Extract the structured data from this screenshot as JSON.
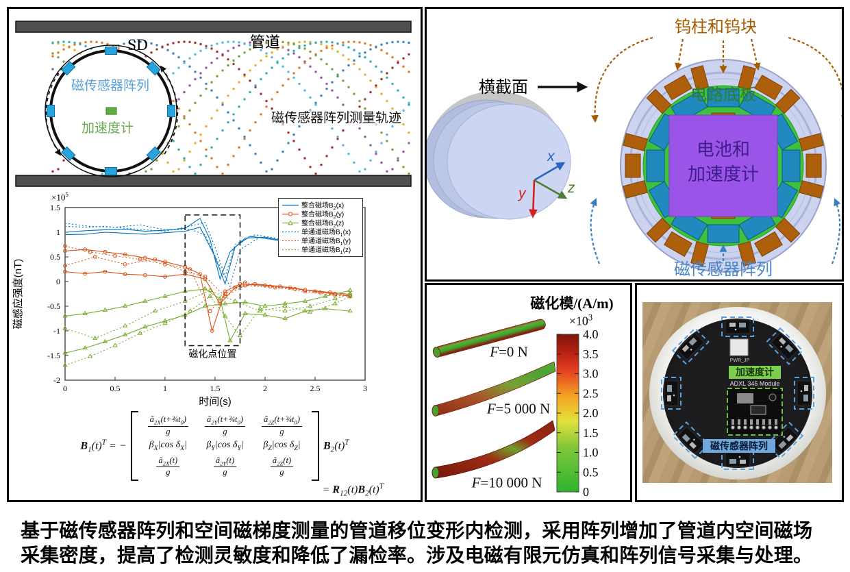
{
  "caption": {
    "line1": "基于磁传感器阵列和空间磁梯度测量的管道移位变形内检测，采用阵列增加了管道内空间磁场",
    "line2": "采集密度，提高了检测灵敏度和降低了漏检率。涉及电磁有限元仿真和阵列信号采集与处理。"
  },
  "pipe_panel": {
    "sd_label": "SD",
    "pipe_label": "管道",
    "array_label": "磁传感器阵列",
    "accel_label": "加速度计",
    "trajectory_label": "磁传感器阵列测量轨迹",
    "colors": {
      "wall": "#4f4f4f",
      "sensor": "#29a3dc",
      "accel": "#5fae3f",
      "array_label": "#58a0d6",
      "accel_label": "#6aa84f"
    },
    "trajectory_colors": [
      "#9a55a8",
      "#e8b12c",
      "#e07b28",
      "#3a85c4",
      "#a8322c",
      "#5ab7e0",
      "#74a63c",
      "#30b0b8"
    ]
  },
  "chart_data": {
    "type": "line",
    "xlabel": "时间(s)",
    "ylabel": "磁感应强度(nT)",
    "y_multiplier": "×10^5^",
    "xlim": [
      0,
      3
    ],
    "ylim": [
      -2,
      1.5
    ],
    "xticks": [
      0,
      0.5,
      1,
      1.5,
      2,
      2.5,
      3
    ],
    "yticks": [
      1.5,
      1,
      0.5,
      0,
      -0.5,
      -1,
      -1.5,
      -2
    ],
    "grid": false,
    "legend_position": "top-right",
    "annotation": {
      "label": "磁化点位置",
      "x0": 1.2,
      "x1": 1.75,
      "y0": -1.3,
      "y1": 1.35
    },
    "series": [
      {
        "name": "整合磁场B_2_(x)",
        "color": "#0072bd",
        "dash": false,
        "marker": null,
        "lines": [
          [
            [
              0,
              1.0
            ],
            [
              0.2,
              1.03
            ],
            [
              0.4,
              1.05
            ],
            [
              0.6,
              1.06
            ],
            [
              0.8,
              1.02
            ],
            [
              1.0,
              1.04
            ],
            [
              1.2,
              1.08
            ],
            [
              1.35,
              1.28
            ],
            [
              1.45,
              0.85
            ],
            [
              1.55,
              0.05
            ],
            [
              1.65,
              0.6
            ],
            [
              1.8,
              0.88
            ],
            [
              2.0,
              0.9
            ],
            [
              2.2,
              0.82
            ],
            [
              2.3,
              0.78
            ]
          ],
          [
            [
              0,
              0.95
            ],
            [
              0.2,
              0.96
            ],
            [
              0.4,
              1.0
            ],
            [
              0.6,
              0.98
            ],
            [
              0.8,
              0.96
            ],
            [
              1.0,
              0.99
            ],
            [
              1.2,
              1.02
            ],
            [
              1.35,
              1.1
            ],
            [
              1.5,
              0.5
            ],
            [
              1.6,
              -0.05
            ],
            [
              1.7,
              0.7
            ],
            [
              1.85,
              0.92
            ],
            [
              2.05,
              0.86
            ],
            [
              2.25,
              0.8
            ]
          ]
        ]
      },
      {
        "name": "整合磁场B_2_(y)",
        "color": "#d95319",
        "dash": false,
        "marker": "circle",
        "lines": [
          [
            [
              0,
              0.62
            ],
            [
              0.2,
              0.65
            ],
            [
              0.4,
              0.6
            ],
            [
              0.6,
              0.55
            ],
            [
              0.8,
              0.48
            ],
            [
              1.0,
              0.4
            ],
            [
              1.2,
              0.3
            ],
            [
              1.35,
              0.15
            ],
            [
              1.47,
              -1.0
            ],
            [
              1.6,
              -0.2
            ],
            [
              1.75,
              -0.05
            ],
            [
              2.0,
              -0.08
            ],
            [
              2.25,
              -0.12
            ],
            [
              2.5,
              -0.2
            ],
            [
              2.7,
              -0.25
            ],
            [
              2.85,
              -0.3
            ]
          ],
          [
            [
              0,
              0.2
            ],
            [
              0.2,
              0.16
            ],
            [
              0.4,
              0.2
            ],
            [
              0.6,
              0.15
            ],
            [
              0.8,
              0.13
            ],
            [
              1.0,
              0.1
            ],
            [
              1.2,
              0.15
            ],
            [
              1.4,
              0.05
            ],
            [
              1.55,
              -0.45
            ],
            [
              1.7,
              -0.12
            ],
            [
              1.9,
              -0.05
            ],
            [
              2.15,
              -0.1
            ],
            [
              2.4,
              -0.17
            ],
            [
              2.65,
              -0.22
            ],
            [
              2.85,
              -0.26
            ]
          ]
        ]
      },
      {
        "name": "整合磁场B_2_(z)",
        "color": "#77ac30",
        "dash": false,
        "marker": "triangle",
        "lines": [
          [
            [
              0,
              -0.7
            ],
            [
              0.2,
              -0.65
            ],
            [
              0.4,
              -0.58
            ],
            [
              0.6,
              -0.5
            ],
            [
              0.8,
              -0.4
            ],
            [
              1.0,
              -0.3
            ],
            [
              1.2,
              -0.2
            ],
            [
              1.4,
              -0.15
            ],
            [
              1.55,
              -0.35
            ],
            [
              1.65,
              -1.2
            ],
            [
              1.8,
              -0.65
            ],
            [
              2.0,
              -0.68
            ],
            [
              2.2,
              -0.75
            ],
            [
              2.4,
              -0.6
            ],
            [
              2.6,
              -0.55
            ],
            [
              2.85,
              -0.6
            ]
          ],
          [
            [
              0,
              -1.45
            ],
            [
              0.2,
              -1.35
            ],
            [
              0.4,
              -1.22
            ],
            [
              0.6,
              -1.08
            ],
            [
              0.8,
              -0.92
            ],
            [
              1.0,
              -0.8
            ],
            [
              1.2,
              -0.68
            ],
            [
              1.4,
              -0.5
            ],
            [
              1.6,
              -0.45
            ],
            [
              1.8,
              -0.42
            ],
            [
              2.0,
              -0.5
            ],
            [
              2.2,
              -0.45
            ],
            [
              2.4,
              -0.4
            ],
            [
              2.6,
              -0.3
            ],
            [
              2.85,
              -0.18
            ]
          ]
        ]
      },
      {
        "name": "单通道磁场B_1_(x)",
        "color": "#0072bd",
        "dash": true,
        "marker": null,
        "lines": [
          [
            [
              0,
              1.12
            ],
            [
              0.2,
              1.1
            ],
            [
              0.4,
              1.12
            ],
            [
              0.6,
              1.08
            ],
            [
              0.8,
              1.05
            ],
            [
              1.0,
              1.02
            ],
            [
              1.2,
              1.1
            ],
            [
              1.4,
              1.2
            ],
            [
              1.5,
              0.7
            ],
            [
              1.6,
              0.1
            ],
            [
              1.7,
              0.75
            ],
            [
              1.9,
              0.95
            ],
            [
              2.1,
              0.88
            ],
            [
              2.3,
              0.82
            ]
          ],
          [
            [
              0,
              1.18
            ],
            [
              0.25,
              1.12
            ],
            [
              0.5,
              1.1
            ],
            [
              0.75,
              1.15
            ],
            [
              1.0,
              1.05
            ],
            [
              1.25,
              1.06
            ],
            [
              1.4,
              0.95
            ],
            [
              1.55,
              0.3
            ],
            [
              1.65,
              -0.1
            ],
            [
              1.75,
              0.65
            ],
            [
              1.95,
              0.9
            ],
            [
              2.15,
              0.85
            ],
            [
              2.35,
              0.78
            ]
          ]
        ]
      },
      {
        "name": "单通道磁场B_1_(y)",
        "color": "#d95319",
        "dash": true,
        "marker": "circle",
        "lines": [
          [
            [
              0,
              0.72
            ],
            [
              0.25,
              0.6
            ],
            [
              0.5,
              0.52
            ],
            [
              0.75,
              0.45
            ],
            [
              1.0,
              0.35
            ],
            [
              1.25,
              0.25
            ],
            [
              1.45,
              -0.6
            ],
            [
              1.6,
              -0.25
            ],
            [
              1.8,
              -0.02
            ],
            [
              2.05,
              -0.1
            ],
            [
              2.3,
              -0.15
            ],
            [
              2.55,
              -0.22
            ],
            [
              2.85,
              -0.28
            ]
          ],
          [
            [
              0,
              0.32
            ],
            [
              0.3,
              0.5
            ],
            [
              0.6,
              0.35
            ],
            [
              0.9,
              0.45
            ],
            [
              1.2,
              0.2
            ],
            [
              1.4,
              0.1
            ],
            [
              1.6,
              -0.3
            ],
            [
              1.8,
              -0.08
            ],
            [
              2.1,
              -0.12
            ],
            [
              2.4,
              -0.2
            ],
            [
              2.7,
              -0.28
            ],
            [
              2.85,
              -0.3
            ]
          ]
        ]
      },
      {
        "name": "单通道磁场B_1_(z)",
        "color": "#77ac30",
        "dash": true,
        "marker": "triangle",
        "lines": [
          [
            [
              0,
              -1.7
            ],
            [
              0.25,
              -1.52
            ],
            [
              0.5,
              -1.3
            ],
            [
              0.75,
              -1.05
            ],
            [
              1.0,
              -0.85
            ],
            [
              1.25,
              -0.6
            ],
            [
              1.45,
              -0.3
            ],
            [
              1.6,
              -0.7
            ],
            [
              1.75,
              -1.1
            ],
            [
              1.95,
              -0.55
            ],
            [
              2.2,
              -0.6
            ],
            [
              2.45,
              -0.5
            ],
            [
              2.7,
              -0.35
            ],
            [
              2.85,
              -0.25
            ]
          ],
          [
            [
              0,
              -0.95
            ],
            [
              0.3,
              -1.15
            ],
            [
              0.6,
              -0.9
            ],
            [
              0.9,
              -0.6
            ],
            [
              1.2,
              -0.4
            ],
            [
              1.45,
              -0.18
            ],
            [
              1.7,
              -0.4
            ],
            [
              1.95,
              -0.6
            ],
            [
              2.2,
              -0.5
            ],
            [
              2.45,
              -0.62
            ],
            [
              2.7,
              -0.45
            ],
            [
              2.85,
              -0.3
            ]
          ]
        ]
      }
    ]
  },
  "formula": {
    "lhs": "!B!_1_(t)^T^ = −",
    "matrix_row1": [
      {
        "num": "ã_2X_(t+¾t_0_)",
        "den": "g"
      },
      {
        "num": "ã_2Y_(t+¾t_0_)",
        "den": "g"
      },
      {
        "num": "ã_2Z_(t+¾t_0_)",
        "den": "g"
      }
    ],
    "matrix_row2": [
      "β_X_|cos δ_X_|",
      "β_Y_|cos δ_Y_|",
      "β_Z_|cos δ_Z_|"
    ],
    "matrix_row3": [
      {
        "num": "ã_2X_(t)",
        "den": "g"
      },
      {
        "num": "ã_2Y_(t)",
        "den": "g"
      },
      {
        "num": "ã_2Z_(t)",
        "den": "g"
      }
    ],
    "rhs": "!B!_2_(t)^T^",
    "line2": "= !R!_12_(t)!B!_2_(t)^T^"
  },
  "cross_section": {
    "section_label": "横截面",
    "tungsten_label": "钨柱和钨块",
    "board_label": "电路底板",
    "battery_label_line1": "电池和",
    "battery_label_line2": "加速度计",
    "array_label": "磁传感器阵列",
    "axis_x": "x",
    "axis_y": "y",
    "axis_z": "z",
    "colors": {
      "tungsten": "#ad5f0c",
      "sensor": "#2089be",
      "board": "#3ec23e",
      "battery": "#9a55e8",
      "shell": "#ccd3ee",
      "tungsten_label": "#a65c00",
      "array_label": "#4a86c8",
      "board_label": "#2e7d32",
      "battery_text": "#3f1d8a",
      "axis_x_color": "#2a62c8",
      "axis_y_color": "#d42020",
      "axis_z_color": "#4e7d38"
    }
  },
  "simulation": {
    "title": "磁化模/(A/m)",
    "multiplier": "×10^3^",
    "colorbar_ticks": [
      "4.0",
      "3.5",
      "3.0",
      "2.5",
      "2.0",
      "1.5",
      "1.0",
      "0.5",
      "0"
    ],
    "colorbar_colors_top_to_bottom": [
      "#7e150c",
      "#b01e12",
      "#e23c20",
      "#f5a623",
      "#e2e23a",
      "#7fc63a",
      "#2eb52e"
    ],
    "cases": [
      {
        "label": "*F*=0 N"
      },
      {
        "label": "*F*=5 000 N"
      },
      {
        "label": "*F*=10 000 N"
      }
    ]
  },
  "photo": {
    "accel_label": "加速度计",
    "module_label": "ADXL 345 Module",
    "array_label": "磁传感器阵列",
    "connector_label": "PWR_JP",
    "colors": {
      "accel_bg": "#7ccf4e",
      "array_bg": "#6fa8dc",
      "bracket": "#5aa0e0"
    }
  }
}
